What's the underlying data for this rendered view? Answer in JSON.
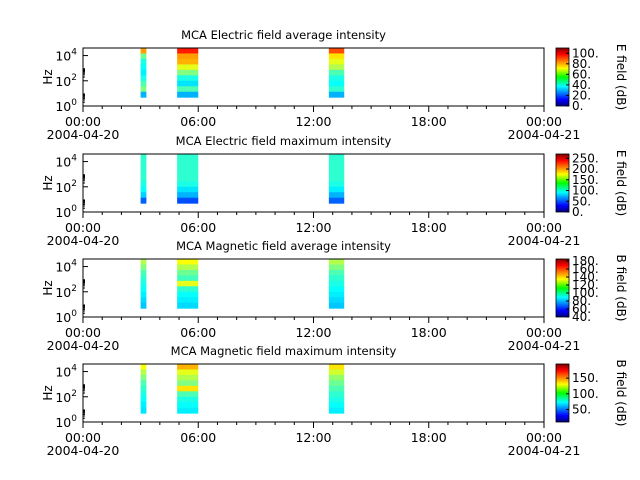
{
  "chart_data": [
    {
      "type": "heatmap",
      "title": "MCA  Electric field average intensity",
      "ylabel": "Hz",
      "colorbar_label": "E field (dB)",
      "colorbar_range": [
        0,
        110
      ],
      "colorbar_ticks": [
        "0.",
        "20.",
        "40.",
        "60.",
        "80.",
        "100."
      ],
      "yticks": [
        {
          "base": "10",
          "exp": "0"
        },
        {
          "base": "10",
          "exp": "2"
        },
        {
          "base": "10",
          "exp": "4"
        }
      ],
      "xticks": [
        "00:00",
        "06:00",
        "12:00",
        "18:00",
        "00:00"
      ],
      "xdate_start": "2004-04-20",
      "xdate_end": "2004-04-21",
      "x_hours_range": [
        0,
        24
      ],
      "blocks": [
        {
          "start": 3.0,
          "end": 3.3,
          "levels": [
            0.72,
            0.48,
            0.4,
            0.38,
            0.36,
            0.4,
            0.45,
            0.5,
            0.3
          ]
        },
        {
          "start": 4.9,
          "end": 6.0,
          "levels": [
            0.85,
            0.72,
            0.7,
            0.6,
            0.5,
            0.4,
            0.35,
            0.45,
            0.3
          ]
        },
        {
          "start": 12.8,
          "end": 13.6,
          "levels": [
            0.8,
            0.65,
            0.6,
            0.55,
            0.45,
            0.4,
            0.38,
            0.42,
            0.3
          ]
        }
      ]
    },
    {
      "type": "heatmap",
      "title": "MCA  Electric field maximum intensity",
      "ylabel": "Hz",
      "colorbar_label": "E field (dB)",
      "colorbar_range": [
        0,
        270
      ],
      "colorbar_ticks": [
        "0.",
        "50.",
        "100.",
        "150.",
        "200.",
        "250."
      ],
      "yticks": [
        {
          "base": "10",
          "exp": "0"
        },
        {
          "base": "10",
          "exp": "2"
        },
        {
          "base": "10",
          "exp": "4"
        }
      ],
      "xticks": [
        "00:00",
        "06:00",
        "12:00",
        "18:00",
        "00:00"
      ],
      "xdate_start": "2004-04-20",
      "xdate_end": "2004-04-21",
      "x_hours_range": [
        0,
        24
      ],
      "blocks": [
        {
          "start": 3.0,
          "end": 3.3,
          "levels": [
            0.42,
            0.42,
            0.42,
            0.42,
            0.42,
            0.4,
            0.38,
            0.33,
            0.22
          ]
        },
        {
          "start": 4.9,
          "end": 6.0,
          "levels": [
            0.42,
            0.42,
            0.42,
            0.42,
            0.42,
            0.4,
            0.35,
            0.3,
            0.2
          ]
        },
        {
          "start": 12.8,
          "end": 13.6,
          "levels": [
            0.42,
            0.42,
            0.42,
            0.42,
            0.42,
            0.4,
            0.36,
            0.3,
            0.22
          ]
        }
      ]
    },
    {
      "type": "heatmap",
      "title": "MCA  Magnetic field average intensity",
      "ylabel": "Hz",
      "colorbar_label": "B field (dB)",
      "colorbar_range": [
        40,
        185
      ],
      "colorbar_ticks": [
        "40.",
        "60.",
        "80.",
        "100.",
        "120.",
        "140.",
        "160.",
        "180."
      ],
      "yticks": [
        {
          "base": "10",
          "exp": "0"
        },
        {
          "base": "10",
          "exp": "2"
        },
        {
          "base": "10",
          "exp": "4"
        }
      ],
      "xticks": [
        "00:00",
        "06:00",
        "12:00",
        "18:00",
        "00:00"
      ],
      "xdate_start": "2004-04-20",
      "xdate_end": "2004-04-21",
      "x_hours_range": [
        0,
        24
      ],
      "blocks": [
        {
          "start": 3.0,
          "end": 3.3,
          "levels": [
            0.55,
            0.5,
            0.45,
            0.42,
            0.4,
            0.38,
            0.36,
            0.34,
            0.32
          ]
        },
        {
          "start": 4.9,
          "end": 6.0,
          "levels": [
            0.62,
            0.55,
            0.48,
            0.44,
            0.6,
            0.42,
            0.38,
            0.36,
            0.34
          ]
        },
        {
          "start": 12.8,
          "end": 13.6,
          "levels": [
            0.55,
            0.5,
            0.45,
            0.42,
            0.4,
            0.38,
            0.36,
            0.34,
            0.32
          ]
        }
      ]
    },
    {
      "type": "heatmap",
      "title": "MCA  Magnetic field maximum intensity",
      "ylabel": "Hz",
      "colorbar_label": "B field (dB)",
      "colorbar_range": [
        10,
        195
      ],
      "colorbar_ticks": [
        "50.",
        "100.",
        "150."
      ],
      "yticks": [
        {
          "base": "10",
          "exp": "0"
        },
        {
          "base": "10",
          "exp": "2"
        },
        {
          "base": "10",
          "exp": "4"
        }
      ],
      "xticks": [
        "00:00",
        "06:00",
        "12:00",
        "18:00",
        "00:00"
      ],
      "xdate_start": "2004-04-20",
      "xdate_end": "2004-04-21",
      "x_hours_range": [
        0,
        24
      ],
      "blocks": [
        {
          "start": 3.0,
          "end": 3.3,
          "levels": [
            0.62,
            0.55,
            0.5,
            0.45,
            0.42,
            0.4,
            0.38,
            0.36,
            0.35
          ]
        },
        {
          "start": 4.9,
          "end": 6.0,
          "levels": [
            0.7,
            0.6,
            0.55,
            0.5,
            0.65,
            0.45,
            0.4,
            0.38,
            0.36
          ]
        },
        {
          "start": 12.8,
          "end": 13.6,
          "levels": [
            0.65,
            0.58,
            0.52,
            0.48,
            0.45,
            0.42,
            0.4,
            0.38,
            0.36
          ]
        }
      ]
    }
  ]
}
